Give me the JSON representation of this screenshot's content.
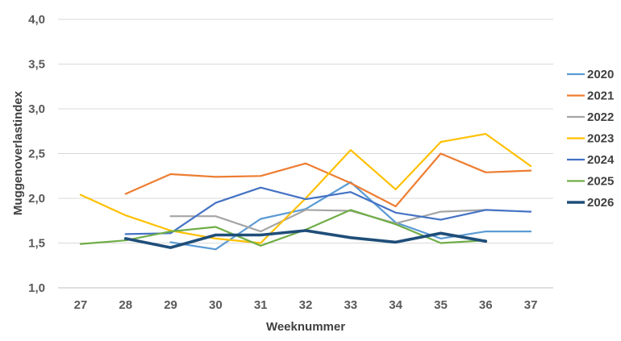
{
  "chart_data": {
    "type": "line",
    "title": "",
    "xlabel": "Weeknummer",
    "ylabel": "Muggenoverlastindex",
    "x": [
      27,
      28,
      29,
      30,
      31,
      32,
      33,
      34,
      35,
      36,
      37
    ],
    "ylim": [
      1.0,
      4.0
    ],
    "yticks": [
      "1,0",
      "1,5",
      "2,0",
      "2,5",
      "3,0",
      "3,5",
      "4,0"
    ],
    "ytick_values": [
      1.0,
      1.5,
      2.0,
      2.5,
      3.0,
      3.5,
      4.0
    ],
    "grid": "horizontal",
    "legend_position": "right",
    "series": [
      {
        "name": "2020",
        "color": "#5b9bd5",
        "width": 2.2,
        "values": [
          null,
          null,
          1.51,
          1.43,
          1.77,
          1.88,
          2.18,
          1.73,
          1.55,
          1.63,
          1.63
        ]
      },
      {
        "name": "2021",
        "color": "#ed7d31",
        "width": 2.2,
        "values": [
          null,
          2.05,
          2.27,
          2.24,
          2.25,
          2.39,
          2.17,
          1.91,
          2.5,
          2.29,
          2.31
        ]
      },
      {
        "name": "2022",
        "color": "#a5a5a5",
        "width": 2.2,
        "values": [
          null,
          null,
          1.8,
          1.8,
          1.63,
          1.87,
          1.86,
          1.72,
          1.85,
          1.87,
          null
        ]
      },
      {
        "name": "2023",
        "color": "#ffc000",
        "width": 2.2,
        "values": [
          2.04,
          1.81,
          1.64,
          1.55,
          1.5,
          2.0,
          2.54,
          2.1,
          2.63,
          2.72,
          2.36
        ]
      },
      {
        "name": "2024",
        "color": "#4472c4",
        "width": 2.2,
        "values": [
          null,
          1.6,
          1.61,
          1.95,
          2.12,
          1.99,
          2.07,
          1.84,
          1.76,
          1.87,
          1.85
        ]
      },
      {
        "name": "2025",
        "color": "#70ad47",
        "width": 2.2,
        "values": [
          1.49,
          1.53,
          1.63,
          1.68,
          1.47,
          1.65,
          1.87,
          1.71,
          1.5,
          1.53,
          null
        ]
      },
      {
        "name": "2026",
        "color": "#1f4e79",
        "width": 3.6,
        "values": [
          null,
          1.55,
          1.45,
          1.59,
          1.59,
          1.64,
          1.56,
          1.51,
          1.61,
          1.52,
          null
        ]
      }
    ]
  }
}
